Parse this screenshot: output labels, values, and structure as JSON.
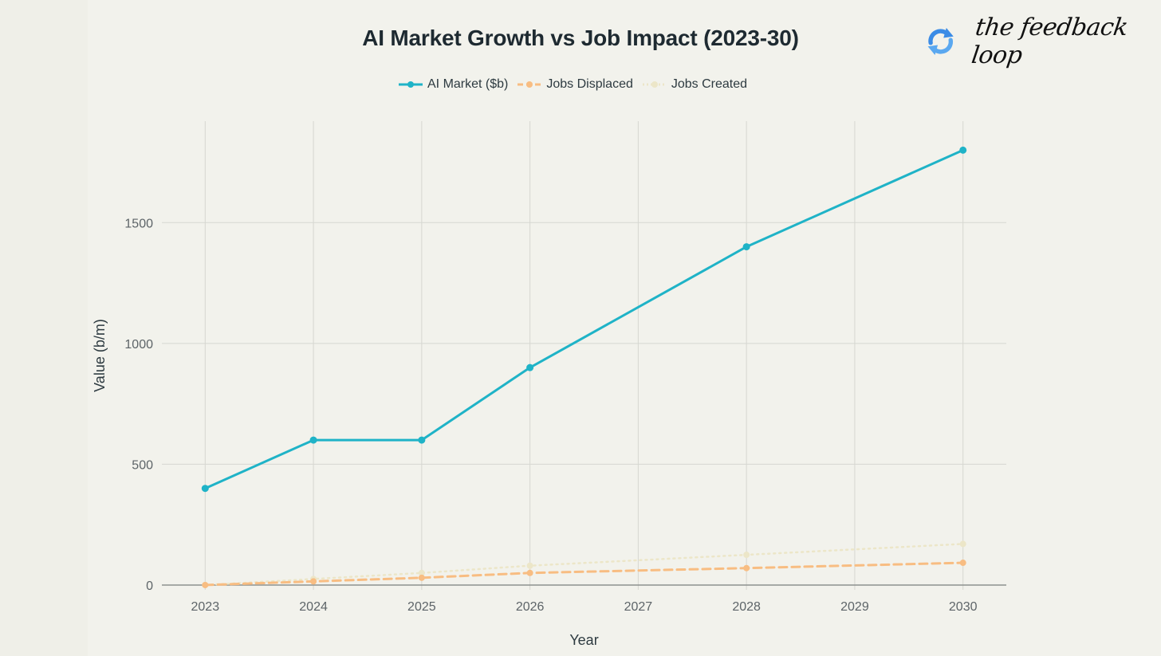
{
  "brand": {
    "name": "the feedback loop",
    "icon": "refresh-loop-icon"
  },
  "colors": {
    "ai_market": "#1fb3c7",
    "jobs_displaced": "#f8bd82",
    "jobs_created": "#ece6c8",
    "grid": "#d6d7d1",
    "zero_line": "#8d918f"
  },
  "chart_data": {
    "type": "line",
    "title": "AI Market Growth vs Job Impact (2023-30)",
    "xlabel": "Year",
    "ylabel": "Value (b/m)",
    "x": [
      2023,
      2024,
      2025,
      2026,
      2028,
      2030
    ],
    "x_ticks": [
      "2023",
      "2024",
      "2025",
      "2026",
      "2027",
      "2028",
      "2029",
      "2030"
    ],
    "y_ticks": [
      "0",
      "500",
      "1000",
      "1500"
    ],
    "xlim": [
      2022.6,
      2030.4
    ],
    "ylim": [
      -20,
      1920
    ],
    "grid": true,
    "legend_position": "top-center",
    "series": [
      {
        "name": "AI Market ($b)",
        "style": "solid",
        "values": [
          400,
          600,
          600,
          900,
          1400,
          1800
        ]
      },
      {
        "name": "Jobs Displaced",
        "style": "dashed",
        "values": [
          0,
          15,
          30,
          50,
          70,
          92
        ]
      },
      {
        "name": "Jobs Created",
        "style": "dotted",
        "values": [
          0,
          25,
          50,
          80,
          125,
          170
        ]
      }
    ]
  }
}
